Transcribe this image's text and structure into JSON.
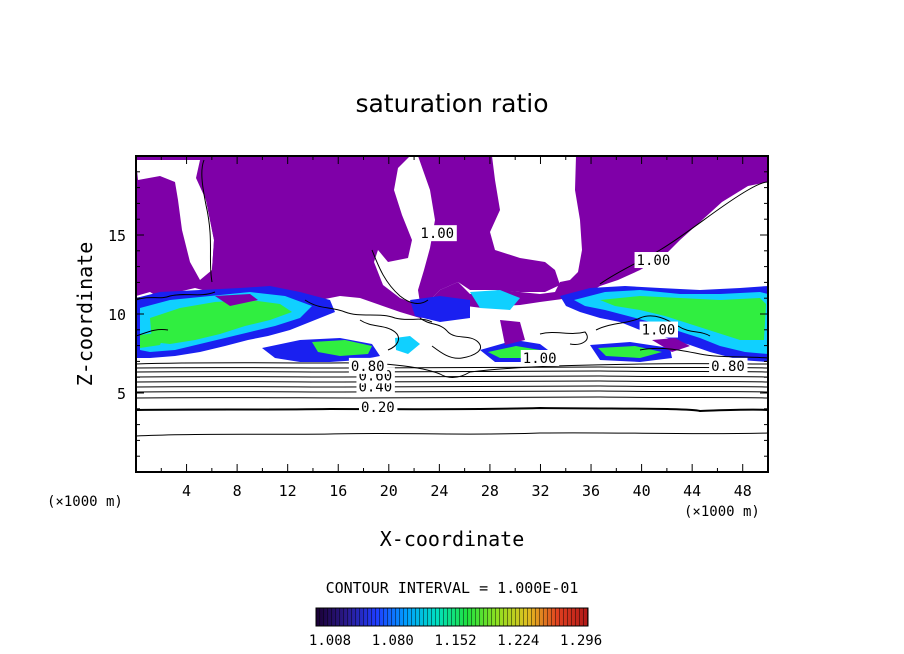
{
  "chart_data": {
    "type": "heatmap",
    "title": "saturation ratio",
    "xlabel": "X-coordinate",
    "ylabel": "Z-coordinate",
    "x_unit": "(×1000 m)",
    "x_unit_right": "(×1000 m)",
    "xlim": [
      0,
      50
    ],
    "ylim": [
      0,
      20
    ],
    "x_ticks": [
      "4",
      "8",
      "12",
      "16",
      "20",
      "24",
      "28",
      "32",
      "36",
      "40",
      "44",
      "48"
    ],
    "x_tick_values": [
      4,
      8,
      12,
      16,
      20,
      24,
      28,
      32,
      36,
      40,
      44,
      48
    ],
    "y_ticks": [
      "5",
      "10",
      "15"
    ],
    "y_tick_values": [
      5,
      10,
      15
    ],
    "contour_interval_text": "CONTOUR INTERVAL = 1.000E-01",
    "contour_labels": [
      {
        "text": "0.20",
        "x": 17.8,
        "z": 3.8
      },
      {
        "text": "0.40",
        "x": 17.6,
        "z": 5.1
      },
      {
        "text": "0.60",
        "x": 17.6,
        "z": 5.8
      },
      {
        "text": "0.80",
        "x": 17.0,
        "z": 6.4
      },
      {
        "text": "0.80",
        "x": 45.5,
        "z": 6.4
      },
      {
        "text": "1.00",
        "x": 30.6,
        "z": 6.9
      },
      {
        "text": "1.00",
        "x": 40.0,
        "z": 8.7
      },
      {
        "text": "1.00",
        "x": 39.6,
        "z": 13.1
      },
      {
        "text": "1.00",
        "x": 22.5,
        "z": 14.8
      }
    ],
    "colorbar": {
      "ticks": [
        "1.008",
        "1.080",
        "1.152",
        "1.224",
        "1.296"
      ],
      "min": 1.008,
      "max": 1.32,
      "colors": [
        "#1a0033",
        "#2a1a8c",
        "#1f3cff",
        "#00a0ff",
        "#00e0c0",
        "#20e040",
        "#90e020",
        "#e0c020",
        "#e04020",
        "#b01818"
      ]
    },
    "colors": {
      "supersaturated_fill": "#7f00a8",
      "blue": "#1a20f0",
      "cyan": "#10d0ff",
      "green": "#30ee40"
    }
  }
}
